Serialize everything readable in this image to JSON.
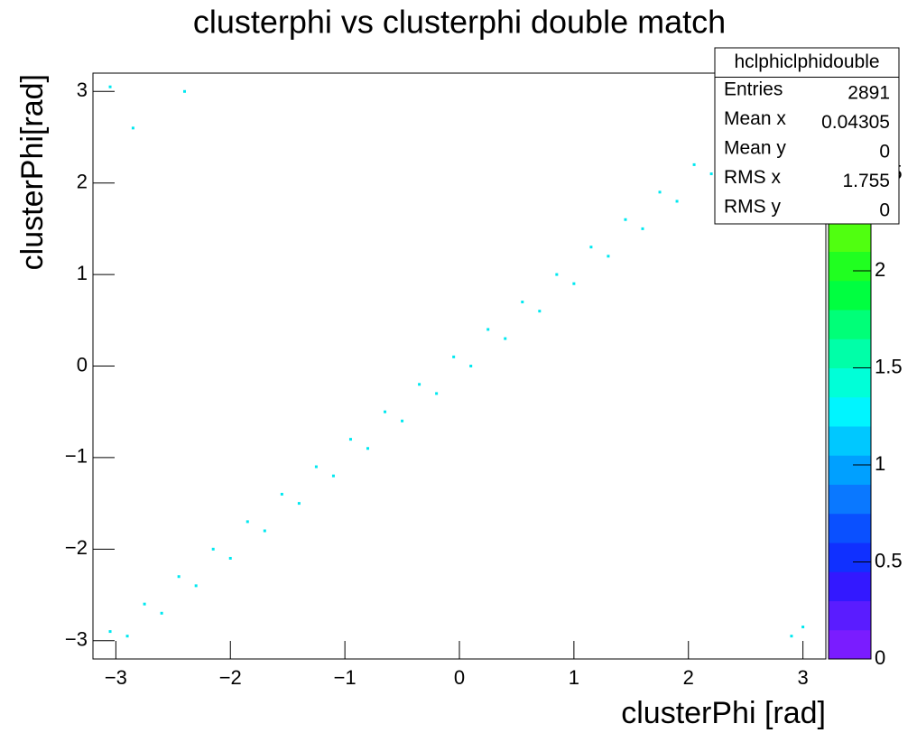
{
  "chart_data": {
    "type": "scatter",
    "title": "clusterphi vs clusterphi double match",
    "x_label": "clusterPhi [rad]",
    "y_label": "clusterPhi[rad]",
    "xlim": [
      -3.2,
      3.2
    ],
    "ylim": [
      -3.2,
      3.2
    ],
    "xticks": [
      {
        "value": -3,
        "label": "−3"
      },
      {
        "value": -2,
        "label": "−2"
      },
      {
        "value": -1,
        "label": "−1"
      },
      0,
      1,
      2,
      3
    ],
    "yticks": [
      {
        "value": -3,
        "label": "−3"
      },
      {
        "value": -2,
        "label": "−2"
      },
      {
        "value": -1,
        "label": "−1"
      },
      0,
      1,
      2,
      3
    ],
    "color": "#00e8f0",
    "x": [
      -3.05,
      -2.9,
      -2.75,
      -2.6,
      -2.45,
      -2.3,
      -2.15,
      -2.0,
      -1.85,
      -1.7,
      -1.55,
      -1.4,
      -1.25,
      -1.1,
      -0.95,
      -0.8,
      -0.65,
      -0.5,
      -0.35,
      -0.2,
      -0.05,
      0.1,
      0.25,
      0.4,
      0.55,
      0.7,
      0.85,
      1.0,
      1.15,
      1.3,
      1.45,
      1.6,
      1.75,
      1.9,
      2.05,
      2.2,
      2.35,
      2.5,
      2.65,
      2.8,
      2.95,
      -3.05,
      -2.4,
      2.9,
      3.0,
      -2.85
    ],
    "y": [
      -2.9,
      -2.95,
      -2.6,
      -2.7,
      -2.3,
      -2.4,
      -2.0,
      -2.1,
      -1.7,
      -1.8,
      -1.4,
      -1.5,
      -1.1,
      -1.2,
      -0.8,
      -0.9,
      -0.5,
      -0.6,
      -0.2,
      -0.3,
      0.1,
      0.0,
      0.4,
      0.3,
      0.7,
      0.6,
      1.0,
      0.9,
      1.3,
      1.2,
      1.6,
      1.5,
      1.9,
      1.8,
      2.2,
      2.1,
      2.5,
      2.4,
      2.8,
      2.7,
      3.1,
      3.05,
      3.0,
      -2.95,
      -2.85,
      2.6
    ],
    "zlim": [
      0,
      3
    ],
    "zticks": [
      0,
      0.5,
      1,
      1.5,
      2,
      2.5
    ],
    "palette": [
      "#7a1cff",
      "#5a1cff",
      "#3318ff",
      "#1030ff",
      "#0a50ff",
      "#0a78ff",
      "#00a0ff",
      "#00c8ff",
      "#00f5ff",
      "#00ffd8",
      "#00ffa8",
      "#00ff78",
      "#00ff40",
      "#20ff20",
      "#50ff10",
      "#80ff10",
      "#aaff10",
      "#d8ff10",
      "#ffff00",
      "#ffd800"
    ],
    "stats": {
      "title": "hclphiclphidouble",
      "rows": [
        [
          "Entries",
          "2891"
        ],
        [
          "Mean x",
          "0.04305"
        ],
        [
          "Mean y",
          "0"
        ],
        [
          "RMS x",
          "1.755"
        ],
        [
          "RMS y",
          "0"
        ]
      ]
    }
  }
}
